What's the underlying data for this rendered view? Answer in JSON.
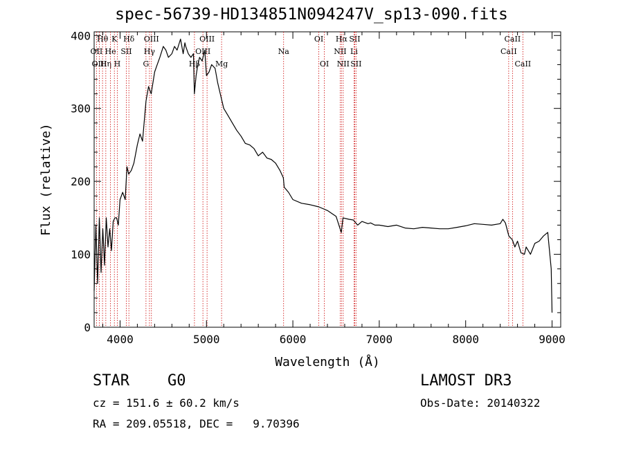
{
  "chart_data": {
    "type": "line",
    "title": "spec-56739-HD134851N094247V_sp13-090.fits",
    "xlabel": "Wavelength (Å)",
    "ylabel": "Flux (relative)",
    "xlim": [
      3700,
      9100
    ],
    "ylim": [
      0,
      405
    ],
    "xticks": [
      4000,
      5000,
      6000,
      7000,
      8000,
      9000
    ],
    "yticks": [
      0,
      100,
      200,
      300,
      400
    ],
    "series": [
      {
        "name": "flux",
        "x": [
          3700,
          3720,
          3740,
          3760,
          3780,
          3800,
          3820,
          3840,
          3860,
          3880,
          3900,
          3920,
          3940,
          3960,
          3980,
          4000,
          4030,
          4060,
          4080,
          4100,
          4130,
          4160,
          4200,
          4230,
          4260,
          4300,
          4330,
          4360,
          4400,
          4430,
          4460,
          4500,
          4530,
          4560,
          4600,
          4630,
          4660,
          4700,
          4730,
          4750,
          4760,
          4790,
          4820,
          4850,
          4860,
          4880,
          4900,
          4920,
          4950,
          4980,
          5000,
          5030,
          5060,
          5100,
          5130,
          5160,
          5200,
          5250,
          5300,
          5350,
          5400,
          5450,
          5500,
          5550,
          5600,
          5650,
          5700,
          5750,
          5800,
          5850,
          5890,
          5900,
          5950,
          6000,
          6100,
          6200,
          6300,
          6400,
          6500,
          6560,
          6580,
          6650,
          6700,
          6750,
          6800,
          6870,
          6900,
          6950,
          7000,
          7100,
          7200,
          7300,
          7400,
          7500,
          7600,
          7700,
          7800,
          7900,
          8000,
          8100,
          8200,
          8300,
          8400,
          8430,
          8460,
          8500,
          8540,
          8570,
          8600,
          8640,
          8680,
          8700,
          8750,
          8800,
          8850,
          8900,
          8950,
          8990,
          9000
        ],
        "y": [
          50,
          140,
          60,
          150,
          75,
          135,
          85,
          150,
          110,
          135,
          105,
          145,
          150,
          150,
          140,
          175,
          185,
          175,
          220,
          210,
          215,
          225,
          250,
          265,
          255,
          310,
          330,
          320,
          350,
          360,
          370,
          385,
          380,
          370,
          375,
          385,
          380,
          395,
          375,
          390,
          385,
          375,
          370,
          375,
          320,
          345,
          360,
          370,
          365,
          380,
          345,
          350,
          360,
          355,
          335,
          320,
          300,
          290,
          280,
          270,
          262,
          252,
          250,
          245,
          235,
          240,
          232,
          230,
          225,
          215,
          205,
          192,
          185,
          175,
          170,
          168,
          165,
          160,
          152,
          130,
          150,
          148,
          147,
          140,
          145,
          142,
          143,
          140,
          140,
          138,
          140,
          136,
          135,
          137,
          136,
          135,
          135,
          137,
          139,
          142,
          141,
          140,
          142,
          148,
          143,
          125,
          120,
          110,
          118,
          102,
          100,
          110,
          100,
          115,
          118,
          125,
          130,
          80,
          20
        ]
      }
    ],
    "line_markers": [
      {
        "label": "OII",
        "wavelength": 3727,
        "row": 1
      },
      {
        "label": "OIII",
        "wavelength": 3760,
        "row": 2
      },
      {
        "label": "Hθ",
        "wavelength": 3797,
        "row": 0
      },
      {
        "label": "Hη",
        "wavelength": 3835,
        "row": 2
      },
      {
        "label": "He",
        "wavelength": 3889,
        "row": 1
      },
      {
        "label": "K",
        "wavelength": 3934,
        "row": 0
      },
      {
        "label": "H",
        "wavelength": 3968,
        "row": 2
      },
      {
        "label": "SII",
        "wavelength": 4072,
        "row": 1
      },
      {
        "label": "Hδ",
        "wavelength": 4102,
        "row": 0
      },
      {
        "label": "G",
        "wavelength": 4300,
        "row": 2
      },
      {
        "label": "Hγ",
        "wavelength": 4340,
        "row": 1
      },
      {
        "label": "OIII",
        "wavelength": 4363,
        "row": 0
      },
      {
        "label": "Hβ",
        "wavelength": 4861,
        "row": 2
      },
      {
        "label": "OIII",
        "wavelength": 4959,
        "row": 1
      },
      {
        "label": "OIII",
        "wavelength": 5007,
        "row": 0
      },
      {
        "label": "Mg",
        "wavelength": 5175,
        "row": 2
      },
      {
        "label": "Na",
        "wavelength": 5893,
        "row": 1
      },
      {
        "label": "OI",
        "wavelength": 6300,
        "row": 0
      },
      {
        "label": "OI",
        "wavelength": 6364,
        "row": 2
      },
      {
        "label": "NII",
        "wavelength": 6548,
        "row": 1
      },
      {
        "label": "Hα",
        "wavelength": 6563,
        "row": 0
      },
      {
        "label": "NII",
        "wavelength": 6583,
        "row": 2
      },
      {
        "label": "Li",
        "wavelength": 6708,
        "row": 1
      },
      {
        "label": "SII",
        "wavelength": 6716,
        "row": 0
      },
      {
        "label": "SII",
        "wavelength": 6731,
        "row": 2
      },
      {
        "label": "CaII",
        "wavelength": 8498,
        "row": 1
      },
      {
        "label": "CaII",
        "wavelength": 8542,
        "row": 0
      },
      {
        "label": "CaII",
        "wavelength": 8662,
        "row": 2
      }
    ]
  },
  "info": {
    "class_label": "STAR",
    "subclass": "G0",
    "survey": "LAMOST DR3",
    "cz": "cz = 151.6 ± 60.2 km/s",
    "obs_date": "Obs-Date: 20140322",
    "radec": "RA = 209.05518, DEC =   9.70396"
  },
  "colors": {
    "line": "#000000",
    "marker": "#cc0000"
  }
}
